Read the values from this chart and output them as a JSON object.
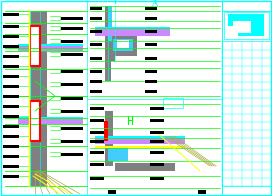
{
  "bg_color": "#ffffff",
  "border_color": "#00ffff",
  "colors": {
    "cyan": "#00ffff",
    "green": "#00ff00",
    "yellow": "#ffff00",
    "red": "#ff0000",
    "purple": "#cc44ff",
    "gray": "#808080",
    "dark_gray": "#404040",
    "white": "#ffffff",
    "olive": "#aaaa44",
    "black": "#000000",
    "light_blue": "#44ccff",
    "light_purple": "#cc88ff"
  },
  "figsize": [
    2.72,
    1.96
  ],
  "dpi": 100
}
